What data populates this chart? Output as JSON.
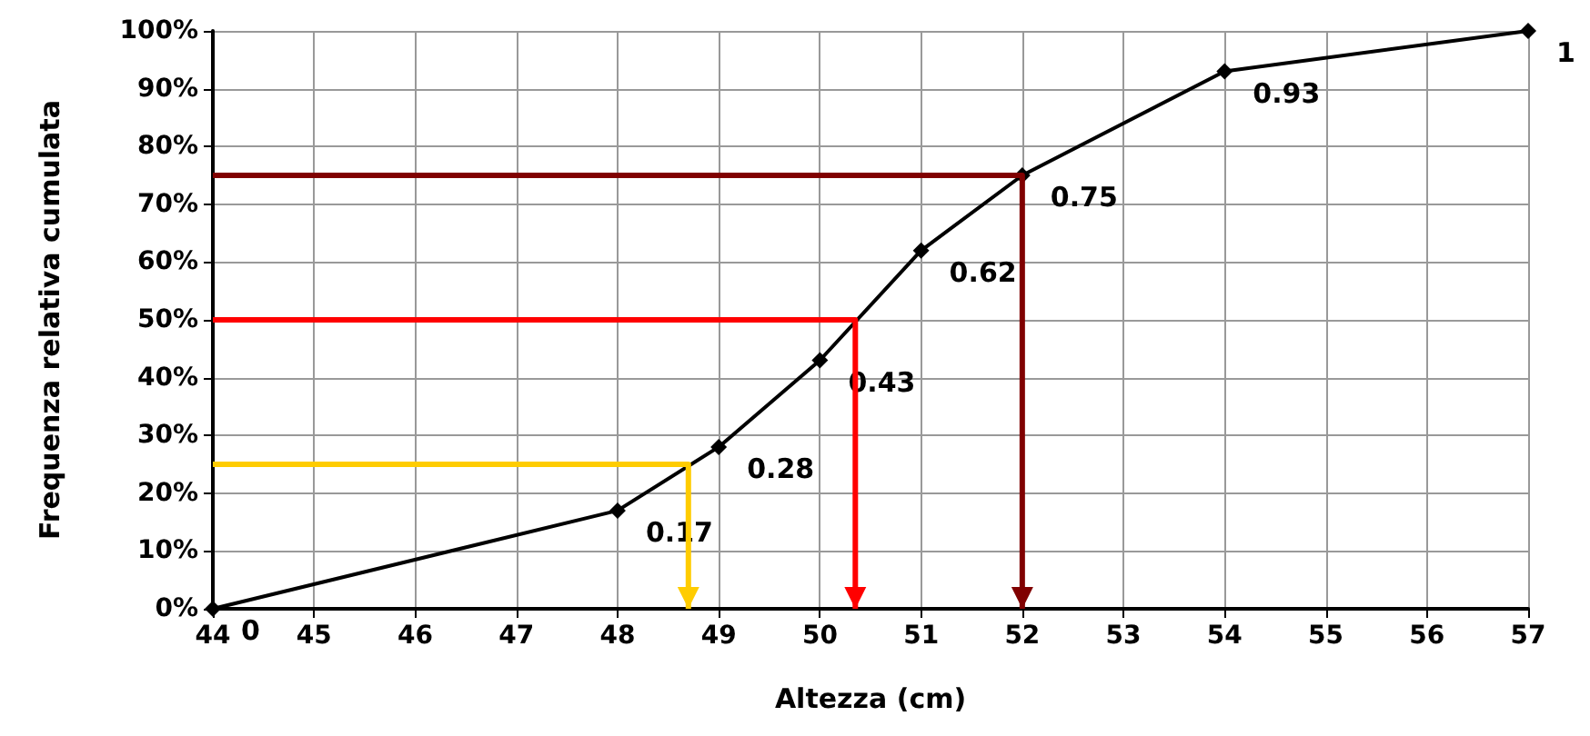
{
  "chart_data": {
    "type": "line",
    "xlabel": "Altezza (cm)",
    "ylabel": "Frequenza relativa cumulata",
    "x": [
      44,
      48,
      49,
      50,
      51,
      52,
      54,
      57
    ],
    "series": [
      {
        "color": "#000000",
        "values": [
          0,
          0.17,
          0.28,
          0.43,
          0.62,
          0.75,
          0.93,
          1
        ],
        "marker": "diamond",
        "value_labels": [
          "0",
          "0.17",
          "0.28",
          "0.43",
          "0.62",
          "0.75",
          "0.93",
          "1"
        ]
      },
      {
        "color": "#ffcc00",
        "x": [
          44,
          48.7,
          48.7
        ],
        "values": [
          0.25,
          0.25,
          0
        ],
        "marker": "none"
      },
      {
        "color": "#ff0000",
        "x": [
          44,
          50.35,
          50.35
        ],
        "values": [
          0.5,
          0.5,
          0
        ],
        "marker": "none"
      },
      {
        "color": "#800000",
        "x": [
          44,
          52,
          52
        ],
        "values": [
          0.75,
          0.75,
          0
        ],
        "marker": "none"
      }
    ],
    "grid": true,
    "line_style": "solid",
    "xlim": [
      44,
      57
    ],
    "xticks": [
      44,
      45,
      46,
      47,
      48,
      49,
      50,
      51,
      52,
      53,
      54,
      55,
      56,
      57
    ],
    "ylim": [
      0,
      1
    ],
    "yticks": [
      {
        "value": 0,
        "label": "0%"
      },
      {
        "value": 0.1,
        "label": "10%"
      },
      {
        "value": 0.2,
        "label": "20%"
      },
      {
        "value": 0.3,
        "label": "30%"
      },
      {
        "value": 0.4,
        "label": "40%"
      },
      {
        "value": 0.5,
        "label": "50%"
      },
      {
        "value": 0.6,
        "label": "60%"
      },
      {
        "value": 0.7,
        "label": "70%"
      },
      {
        "value": 0.8,
        "label": "80%"
      },
      {
        "value": 0.9,
        "label": "90%"
      },
      {
        "value": 1,
        "label": "100%"
      }
    ]
  }
}
